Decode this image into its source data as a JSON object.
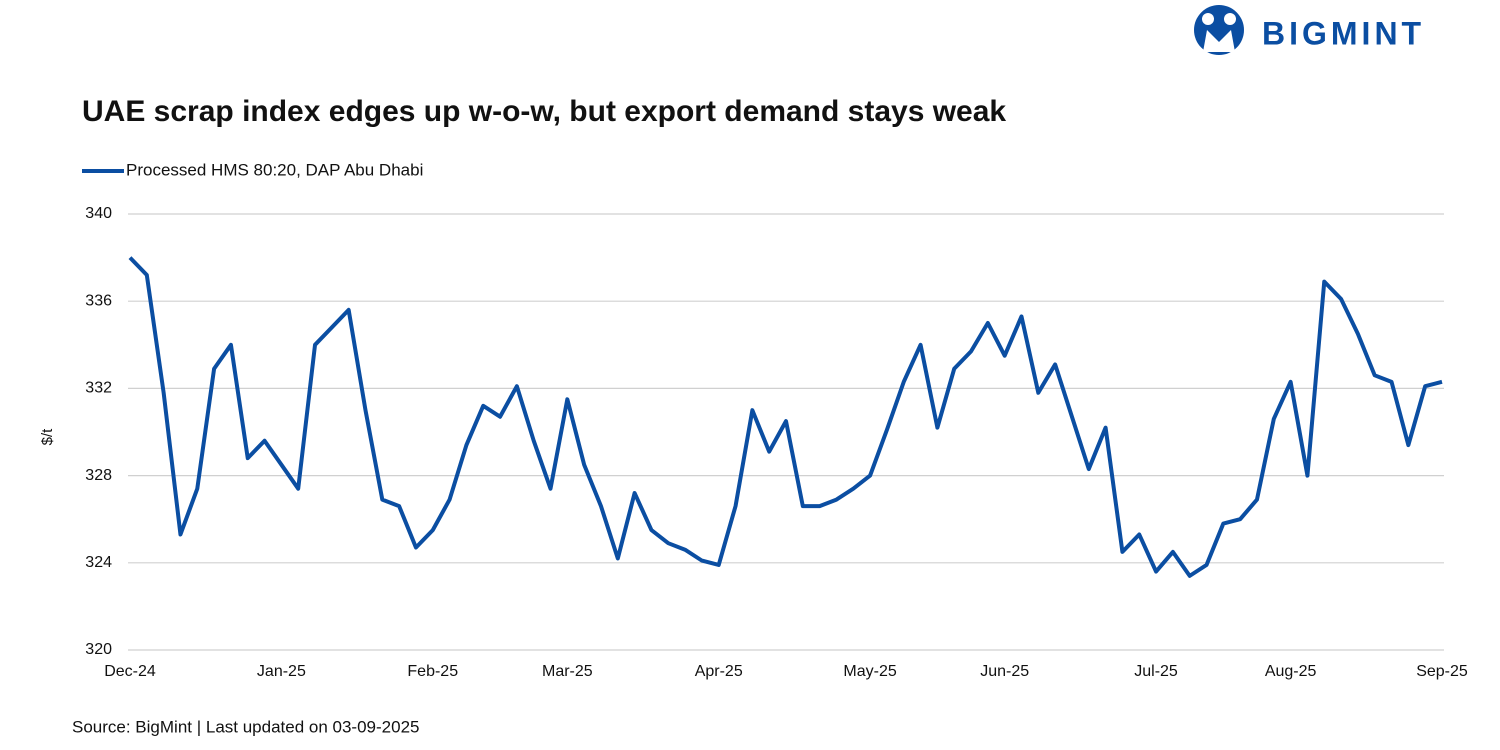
{
  "brand": "BIGMINT",
  "chart_data": {
    "type": "line",
    "title": "UAE scrap index edges up w-o-w, but export demand stays weak",
    "y_label": "$/t",
    "source": "Source: BigMint  |  Last updated on 03-09-2025",
    "categories": [
      "Dec-24",
      null,
      null,
      null,
      null,
      null,
      null,
      null,
      null,
      "Jan-25",
      null,
      null,
      null,
      null,
      null,
      null,
      null,
      null,
      "Feb-25",
      null,
      null,
      null,
      null,
      null,
      null,
      null,
      "Mar-25",
      null,
      null,
      null,
      null,
      null,
      null,
      null,
      null,
      "Apr-25",
      null,
      null,
      null,
      null,
      null,
      null,
      null,
      null,
      "May-25",
      null,
      null,
      null,
      null,
      null,
      null,
      null,
      "Jun-25",
      null,
      null,
      null,
      null,
      null,
      null,
      null,
      null,
      "Jul-25",
      null,
      null,
      null,
      null,
      null,
      null,
      null,
      "Aug-25",
      null,
      null,
      null,
      null,
      null,
      null,
      null,
      null,
      "Sep-25"
    ],
    "series": [
      {
        "name": "Processed HMS 80:20, DAP Abu Dhabi",
        "color": "#0b4ea2",
        "values": [
          338.0,
          337.2,
          331.8,
          325.3,
          327.4,
          332.9,
          334.0,
          328.8,
          329.6,
          328.5,
          327.4,
          334.0,
          334.8,
          335.6,
          331.0,
          326.9,
          326.6,
          324.7,
          325.5,
          326.9,
          329.4,
          331.2,
          330.7,
          332.1,
          329.6,
          327.4,
          331.5,
          328.5,
          326.6,
          324.2,
          327.2,
          325.5,
          324.9,
          324.6,
          324.1,
          323.9,
          326.6,
          331.0,
          329.1,
          330.5,
          326.6,
          326.6,
          326.9,
          327.4,
          328.0,
          330.1,
          332.3,
          334.0,
          330.2,
          332.9,
          333.7,
          335.0,
          333.5,
          335.3,
          331.8,
          333.1,
          330.7,
          328.3,
          330.2,
          324.5,
          325.3,
          323.6,
          324.5,
          323.4,
          323.9,
          325.8,
          326.0,
          326.9,
          330.6,
          332.3,
          328.0,
          336.9,
          336.1,
          334.5,
          332.6,
          332.3,
          329.4,
          332.1,
          332.3
        ]
      }
    ],
    "ylim": [
      320,
      340
    ],
    "yticks": [
      320,
      324,
      328,
      332,
      336,
      340
    ],
    "grid": true,
    "legend": "top-left"
  }
}
